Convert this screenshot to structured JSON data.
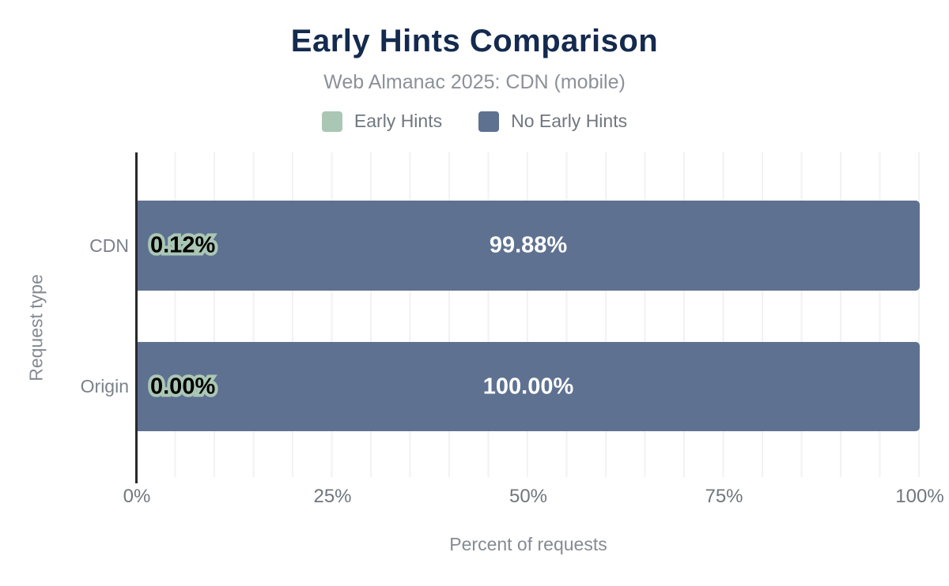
{
  "chart_data": {
    "type": "bar",
    "orientation": "horizontal",
    "stacked": true,
    "title": "Early Hints Comparison",
    "subtitle": "Web Almanac 2025: CDN (mobile)",
    "xlabel": "Percent of requests",
    "ylabel": "Request type",
    "categories": [
      "CDN",
      "Origin"
    ],
    "series": [
      {
        "name": "Early Hints",
        "color": "#aac7b5",
        "values": [
          0.12,
          0.0
        ],
        "labels": [
          "0.12%",
          "0.00%"
        ]
      },
      {
        "name": "No Early Hints",
        "color": "#5f7191",
        "values": [
          99.88,
          100.0
        ],
        "labels": [
          "99.88%",
          "100.00%"
        ]
      }
    ],
    "xlim": [
      0,
      100
    ],
    "xticks": [
      "0%",
      "25%",
      "50%",
      "75%",
      "100%"
    ],
    "grid": "vertical gridlines every 5%",
    "legend_position": "top",
    "colors": {
      "title_text": "#142a4e",
      "subtitle_text": "#8c9199",
      "axis_text": "#6f767e",
      "axis_line": "#27292c",
      "gridline": "#f2f2f2",
      "bar_label_on_dark": "#ffffff",
      "bar_label_outlined_fill": "#000000",
      "bar_label_outline": "#aac7b5"
    }
  }
}
